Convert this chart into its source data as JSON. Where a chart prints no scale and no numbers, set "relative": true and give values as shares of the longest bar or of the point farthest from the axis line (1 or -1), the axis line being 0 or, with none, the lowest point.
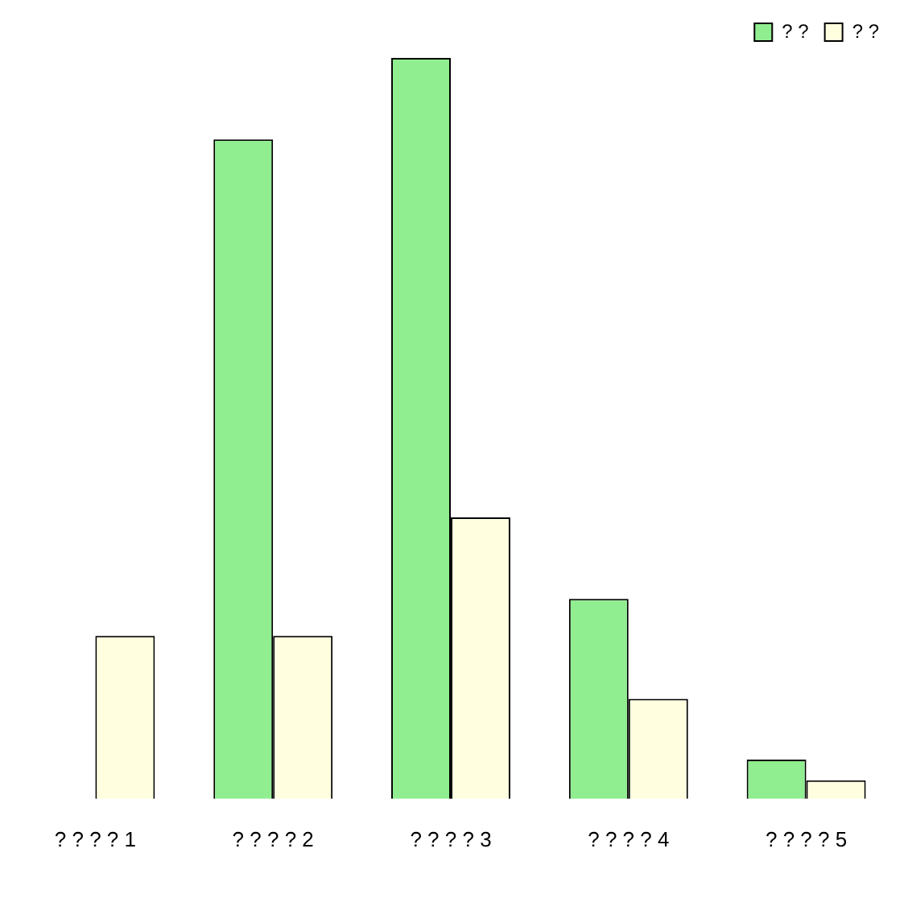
{
  "chart_data": {
    "type": "bar",
    "relative": true,
    "categories": [
      "? ? ? ? 1",
      "? ? ? ? 2",
      "? ? ? ? 3",
      "? ? ? ? 4",
      "? ? ? ? 5"
    ],
    "series": [
      {
        "name": "? ?",
        "color": "#90ee90",
        "values": [
          null,
          0.89,
          1,
          0.27,
          0.053
        ]
      },
      {
        "name": "? ?",
        "color": "#ffffe0",
        "values": [
          0.22,
          0.22,
          0.38,
          0.135,
          0.025
        ]
      }
    ],
    "legend": "top right",
    "grid": false
  }
}
